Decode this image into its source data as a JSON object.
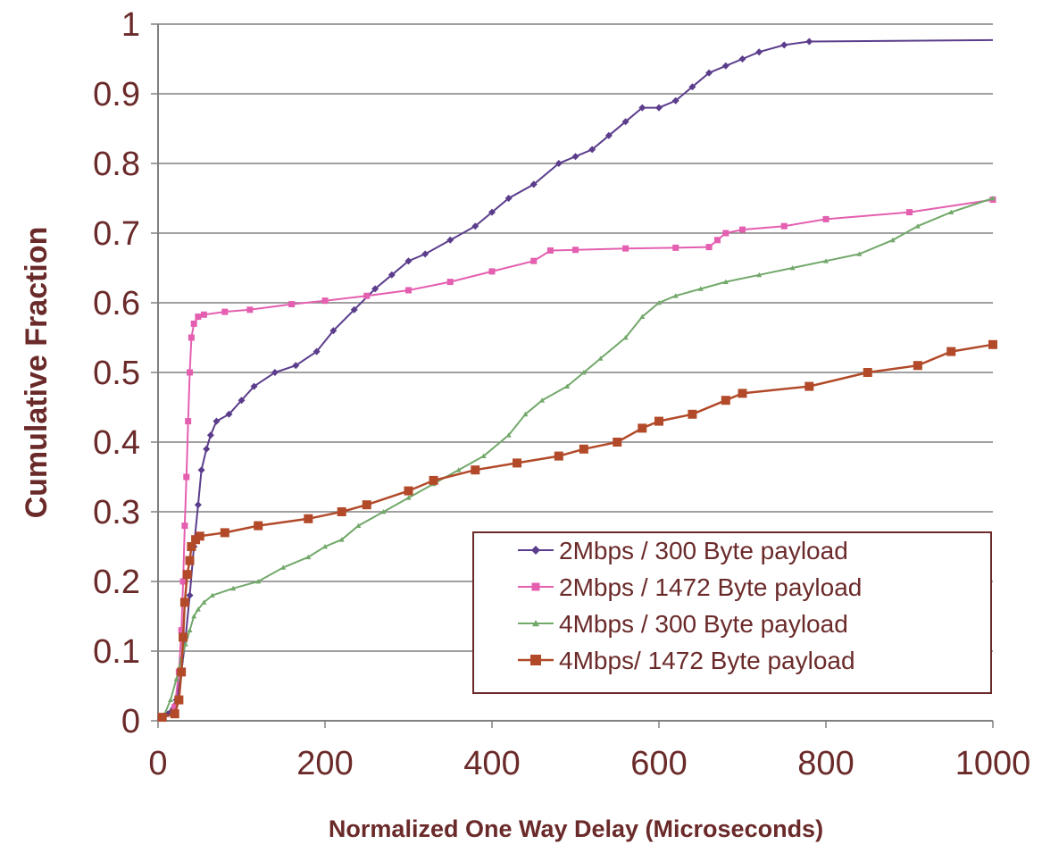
{
  "chart_data": {
    "type": "line",
    "title": "",
    "xlabel": "Normalized One Way Delay (Microseconds)",
    "ylabel": "Cumulative Fraction",
    "xlim": [
      0,
      1000
    ],
    "ylim": [
      0,
      1
    ],
    "xticks": [
      "0",
      "200",
      "400",
      "600",
      "800",
      "1000"
    ],
    "yticks": [
      "0",
      "0.1",
      "0.2",
      "0.3",
      "0.4",
      "0.5",
      "0.6",
      "0.7",
      "0.8",
      "0.9",
      "1"
    ],
    "grid": "horizontal",
    "legend_position": "lower-right",
    "series": [
      {
        "name": "2Mbps / 300 Byte payload",
        "color": "#5b3d8c",
        "marker": "diamond",
        "x": [
          12,
          22,
          28,
          33,
          38,
          43,
          48,
          52,
          58,
          63,
          70,
          85,
          100,
          115,
          140,
          165,
          190,
          210,
          235,
          260,
          280,
          300,
          320,
          350,
          380,
          400,
          420,
          450,
          480,
          500,
          520,
          540,
          560,
          580,
          600,
          620,
          640,
          660,
          680,
          700,
          720,
          750,
          780,
          1000
        ],
        "y": [
          0.01,
          0.03,
          0.07,
          0.12,
          0.18,
          0.25,
          0.31,
          0.36,
          0.39,
          0.41,
          0.43,
          0.44,
          0.46,
          0.48,
          0.5,
          0.51,
          0.53,
          0.56,
          0.59,
          0.62,
          0.64,
          0.66,
          0.67,
          0.69,
          0.71,
          0.73,
          0.75,
          0.77,
          0.8,
          0.81,
          0.82,
          0.84,
          0.86,
          0.88,
          0.88,
          0.89,
          0.91,
          0.93,
          0.94,
          0.95,
          0.96,
          0.97,
          0.975,
          0.977
        ]
      },
      {
        "name": "2Mbps / 1472 Byte payload",
        "color": "#e45fb0",
        "marker": "square",
        "x": [
          20,
          25,
          28,
          30,
          32,
          34,
          36,
          38,
          40,
          43,
          48,
          55,
          80,
          110,
          160,
          200,
          250,
          300,
          350,
          400,
          450,
          470,
          500,
          560,
          620,
          660,
          670,
          680,
          700,
          750,
          800,
          900,
          1000
        ],
        "y": [
          0.02,
          0.07,
          0.13,
          0.2,
          0.28,
          0.35,
          0.43,
          0.5,
          0.55,
          0.57,
          0.58,
          0.583,
          0.587,
          0.59,
          0.598,
          0.603,
          0.61,
          0.618,
          0.63,
          0.645,
          0.66,
          0.675,
          0.676,
          0.678,
          0.679,
          0.68,
          0.69,
          0.7,
          0.705,
          0.71,
          0.72,
          0.73,
          0.748
        ]
      },
      {
        "name": "4Mbps / 300 Byte payload",
        "color": "#72a86a",
        "marker": "triangle",
        "x": [
          8,
          15,
          22,
          28,
          33,
          38,
          43,
          48,
          55,
          65,
          90,
          120,
          150,
          180,
          200,
          220,
          240,
          270,
          300,
          330,
          360,
          390,
          420,
          440,
          460,
          490,
          510,
          530,
          560,
          580,
          600,
          620,
          650,
          680,
          720,
          760,
          800,
          840,
          880,
          910,
          950,
          1000
        ],
        "y": [
          0.01,
          0.03,
          0.06,
          0.09,
          0.11,
          0.13,
          0.15,
          0.16,
          0.17,
          0.18,
          0.19,
          0.2,
          0.22,
          0.235,
          0.25,
          0.26,
          0.28,
          0.3,
          0.32,
          0.34,
          0.36,
          0.38,
          0.41,
          0.44,
          0.46,
          0.48,
          0.5,
          0.52,
          0.55,
          0.58,
          0.6,
          0.61,
          0.62,
          0.63,
          0.64,
          0.65,
          0.66,
          0.67,
          0.69,
          0.71,
          0.73,
          0.75
        ]
      },
      {
        "name": "4Mbps/ 1472 Byte payload",
        "color": "#b24a2a",
        "marker": "square",
        "x": [
          5,
          20,
          25,
          28,
          30,
          32,
          35,
          38,
          40,
          45,
          50,
          80,
          120,
          180,
          220,
          250,
          300,
          330,
          380,
          430,
          480,
          510,
          550,
          580,
          600,
          640,
          680,
          700,
          780,
          850,
          910,
          950,
          1000
        ],
        "y": [
          0.005,
          0.01,
          0.03,
          0.07,
          0.12,
          0.17,
          0.21,
          0.23,
          0.25,
          0.26,
          0.265,
          0.27,
          0.28,
          0.29,
          0.3,
          0.31,
          0.33,
          0.345,
          0.36,
          0.37,
          0.38,
          0.39,
          0.4,
          0.42,
          0.43,
          0.44,
          0.46,
          0.47,
          0.48,
          0.5,
          0.51,
          0.53,
          0.54
        ]
      }
    ]
  }
}
